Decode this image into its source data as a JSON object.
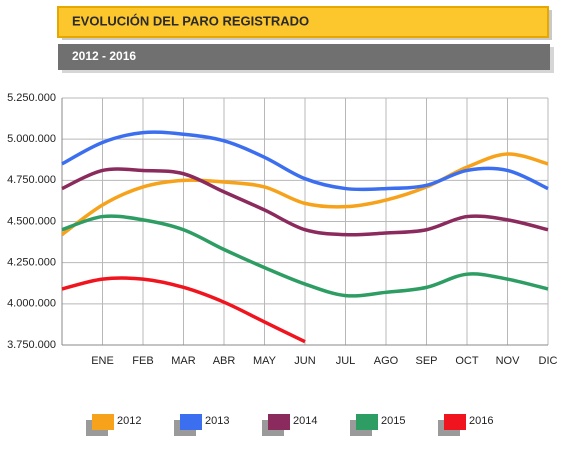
{
  "chart_data": {
    "type": "line",
    "title": "EVOLUCIÓN DEL PARO REGISTRADO",
    "subtitle": "2012 - 2016",
    "categories": [
      null,
      "ENE",
      "FEB",
      "MAR",
      "ABR",
      "MAY",
      "JUN",
      "JUL",
      "AGO",
      "SEP",
      "OCT",
      "NOV",
      "DIC"
    ],
    "series": [
      {
        "name": "2012",
        "color": "#f7a21b",
        "values": [
          4420000,
          4600000,
          4710000,
          4750000,
          4740000,
          4710000,
          4610000,
          4590000,
          4630000,
          4710000,
          4830000,
          4910000,
          4850000
        ]
      },
      {
        "name": "2013",
        "color": "#3c6ff0",
        "values": [
          4850000,
          4980000,
          5040000,
          5030000,
          4990000,
          4890000,
          4760000,
          4700000,
          4700000,
          4720000,
          4810000,
          4810000,
          4700000
        ]
      },
      {
        "name": "2014",
        "color": "#8b2a5d",
        "values": [
          4700000,
          4810000,
          4810000,
          4790000,
          4680000,
          4570000,
          4450000,
          4420000,
          4430000,
          4450000,
          4530000,
          4510000,
          4450000
        ]
      },
      {
        "name": "2015",
        "color": "#2e9d64",
        "values": [
          4450000,
          4530000,
          4510000,
          4450000,
          4330000,
          4220000,
          4120000,
          4050000,
          4070000,
          4100000,
          4180000,
          4150000,
          4090000
        ]
      },
      {
        "name": "2016",
        "color": "#f0141e",
        "values": [
          4090000,
          4150000,
          4150000,
          4100000,
          4010000,
          3890000,
          3770000,
          null,
          null,
          null,
          null,
          null,
          null
        ]
      }
    ],
    "ylim": [
      3750000,
      5250000
    ],
    "yticks": [
      {
        "value": 3750000,
        "label": "3.750.000"
      },
      {
        "value": 4000000,
        "label": "4.000.000"
      },
      {
        "value": 4250000,
        "label": "4.250.000"
      },
      {
        "value": 4500000,
        "label": "4.500.000"
      },
      {
        "value": 4750000,
        "label": "4.750.000"
      },
      {
        "value": 5000000,
        "label": "5.000.000"
      },
      {
        "value": 5250000,
        "label": "5.250.000"
      }
    ],
    "grid": true
  }
}
